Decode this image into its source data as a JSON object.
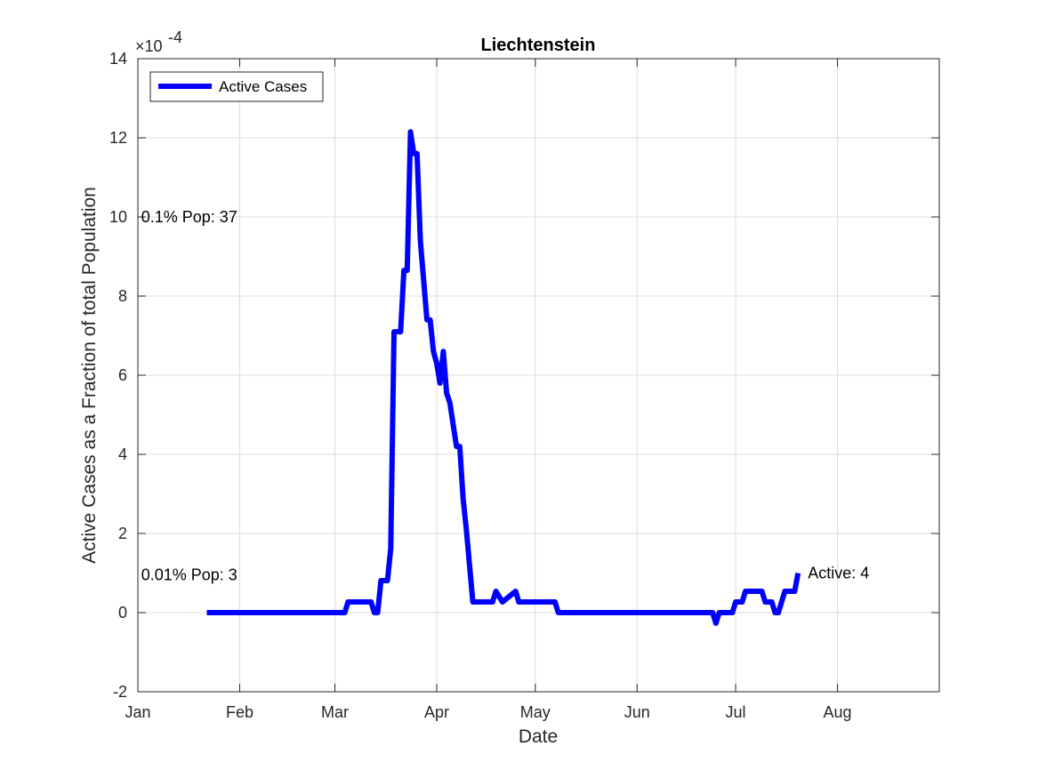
{
  "chart_data": {
    "type": "line",
    "title": "Liechtenstein",
    "xlabel": "Date",
    "ylabel": "Active Cases as a Fraction of total Population",
    "y_exponent_label": "×10",
    "y_exponent_power": "-4",
    "x_ticks": [
      "Jan",
      "Feb",
      "Mar",
      "Apr",
      "May",
      "Jun",
      "Jul",
      "Aug"
    ],
    "x_tick_dates": [
      "2020-01-01",
      "2020-02-01",
      "2020-03-01",
      "2020-04-01",
      "2020-05-01",
      "2020-06-01",
      "2020-07-01",
      "2020-08-01"
    ],
    "xlim": [
      "2020-01-01",
      "2020-09-01"
    ],
    "y_ticks": [
      "-2",
      "0",
      "2",
      "4",
      "6",
      "8",
      "10",
      "12",
      "14"
    ],
    "ylim": [
      -2,
      14
    ],
    "grid": true,
    "legend": {
      "position": "top-left",
      "entries": [
        "Active Cases"
      ]
    },
    "series": [
      {
        "name": "Active Cases",
        "color": "#0000ff",
        "x": [
          "2020-01-22",
          "2020-03-04",
          "2020-03-05",
          "2020-03-12",
          "2020-03-13",
          "2020-03-14",
          "2020-03-15",
          "2020-03-17",
          "2020-03-18",
          "2020-03-19",
          "2020-03-21",
          "2020-03-22",
          "2020-03-23",
          "2020-03-24",
          "2020-03-25",
          "2020-03-26",
          "2020-03-27",
          "2020-03-29",
          "2020-03-30",
          "2020-03-31",
          "2020-04-01",
          "2020-04-02",
          "2020-04-03",
          "2020-04-04",
          "2020-04-05",
          "2020-04-07",
          "2020-04-08",
          "2020-04-09",
          "2020-04-10",
          "2020-04-12",
          "2020-04-18",
          "2020-04-19",
          "2020-04-21",
          "2020-04-25",
          "2020-04-26",
          "2020-04-28",
          "2020-05-07",
          "2020-05-08",
          "2020-06-24",
          "2020-06-25",
          "2020-06-26",
          "2020-06-30",
          "2020-07-01",
          "2020-07-03",
          "2020-07-04",
          "2020-07-09",
          "2020-07-10",
          "2020-07-12",
          "2020-07-13",
          "2020-07-14",
          "2020-07-16",
          "2020-07-17",
          "2020-07-19",
          "2020-07-20"
        ],
        "values": [
          0,
          0,
          0.27,
          0.27,
          0,
          0,
          0.81,
          0.81,
          1.62,
          7.1,
          7.1,
          8.65,
          8.65,
          12.15,
          11.6,
          11.6,
          9.4,
          7.4,
          7.4,
          6.6,
          6.3,
          5.8,
          6.6,
          5.55,
          5.3,
          4.2,
          4.2,
          2.9,
          2.1,
          0.27,
          0.27,
          0.54,
          0.27,
          0.54,
          0.27,
          0.27,
          0.27,
          0,
          0,
          -0.27,
          0,
          0,
          0.27,
          0.27,
          0.54,
          0.54,
          0.27,
          0.27,
          0,
          0,
          0.54,
          0.54,
          0.54,
          1.0
        ]
      }
    ],
    "annotations": [
      {
        "text": "0.1% Pop: 37",
        "x": "2020-01-02",
        "y": 10
      },
      {
        "text": "0.01% Pop: 3",
        "x": "2020-01-02",
        "y": 0.95
      },
      {
        "text": "Active: 4",
        "x": "2020-07-23",
        "y": 1.0
      }
    ]
  }
}
